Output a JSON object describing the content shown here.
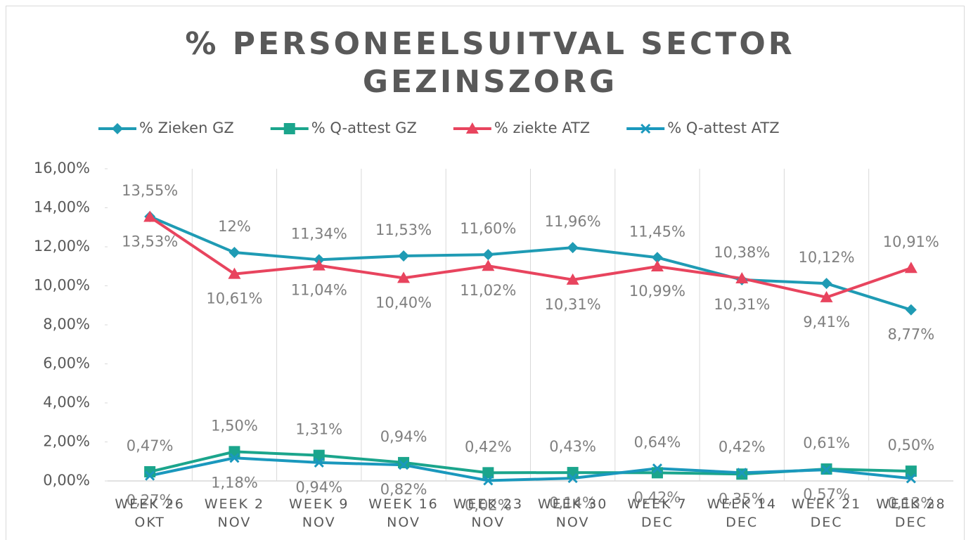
{
  "chart_data": {
    "type": "line",
    "title": "% PERSONEELSUITVAL SECTOR GEZINSZORG",
    "categories": [
      "WEEK 26 OKT",
      "WEEK 2 NOV",
      "WEEK 9 NOV",
      "WEEK 16 NOV",
      "WEEK 23 NOV",
      "WEEK 30 NOV",
      "WEEK 7 DEC",
      "WEEK 14 DEC",
      "WEEK 21 DEC",
      "WEEK 28 DEC"
    ],
    "series": [
      {
        "name": "% Zieken GZ",
        "color": "#1f9bb4",
        "marker": "diamond",
        "values": [
          13.55,
          11.71,
          11.34,
          11.53,
          11.6,
          11.96,
          11.45,
          10.31,
          10.12,
          8.77
        ],
        "value_labels": [
          "13,55%",
          "12%",
          "11,34%",
          "11,53%",
          "11,60%",
          "11,96%",
          "11,45%",
          "10,31%",
          "10,12%",
          "8,77%"
        ]
      },
      {
        "name": "% Q-attest GZ",
        "color": "#1ba58c",
        "marker": "square",
        "values": [
          0.47,
          1.5,
          1.31,
          0.94,
          0.42,
          0.43,
          0.42,
          0.35,
          0.61,
          0.5
        ],
        "value_labels": [
          "0,47%",
          "1,50%",
          "1,31%",
          "0,94%",
          "0,42%",
          "0,43%",
          "0,42%",
          "0,35%",
          "0,61%",
          "0,50%"
        ]
      },
      {
        "name": "% ziekte ATZ",
        "color": "#e8445e",
        "marker": "triangle",
        "values": [
          13.53,
          10.61,
          11.04,
          10.4,
          11.02,
          10.31,
          10.99,
          10.38,
          9.41,
          10.91
        ],
        "value_labels": [
          "13,53%",
          "10,61%",
          "11,04%",
          "10,40%",
          "11,02%",
          "10,31%",
          "10,99%",
          "10,38%",
          "9,41%",
          "10,91%"
        ]
      },
      {
        "name": "% Q-attest ATZ",
        "color": "#1a98bd",
        "marker": "x",
        "values": [
          0.27,
          1.18,
          0.94,
          0.82,
          0.02,
          0.14,
          0.64,
          0.42,
          0.57,
          0.13
        ],
        "value_labels": [
          "0,27%",
          "1,18%",
          "0,94%",
          "0,82%",
          "0,02%",
          "0,14%",
          "0,64%",
          "0,42%",
          "0,57%",
          "0,13%"
        ]
      }
    ],
    "ylim": [
      0,
      16
    ],
    "yticks": [
      {
        "value": 0,
        "label": "0,00%"
      },
      {
        "value": 2,
        "label": "2,00%"
      },
      {
        "value": 4,
        "label": "4,00%"
      },
      {
        "value": 6,
        "label": "6,00%"
      },
      {
        "value": 8,
        "label": "8,00%"
      },
      {
        "value": 10,
        "label": "10,00%"
      },
      {
        "value": 12,
        "label": "12,00%"
      },
      {
        "value": 14,
        "label": "14,00%"
      },
      {
        "value": 16,
        "label": "16,00%"
      }
    ],
    "legend": "top"
  }
}
